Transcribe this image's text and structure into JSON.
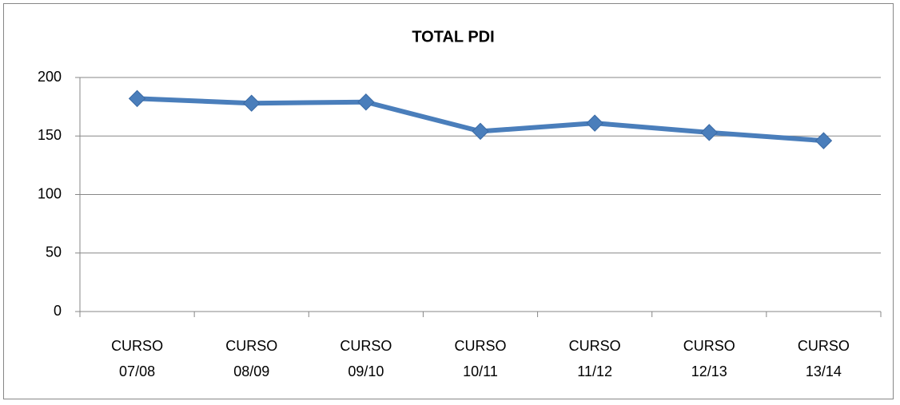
{
  "chart_data": {
    "type": "line",
    "title": "TOTAL PDI",
    "categories": [
      "CURSO 07/08",
      "CURSO 08/09",
      "CURSO 09/10",
      "CURSO 10/11",
      "CURSO 11/12",
      "CURSO 12/13",
      "CURSO 13/14"
    ],
    "series": [
      {
        "name": "TOTAL PDI",
        "color": "#4a7ebb",
        "values": [
          182,
          178,
          179,
          154,
          161,
          153,
          146
        ]
      }
    ],
    "ylim": [
      0,
      200
    ],
    "yticks": [
      0,
      50,
      100,
      150,
      200
    ],
    "grid": true,
    "legend": false
  }
}
